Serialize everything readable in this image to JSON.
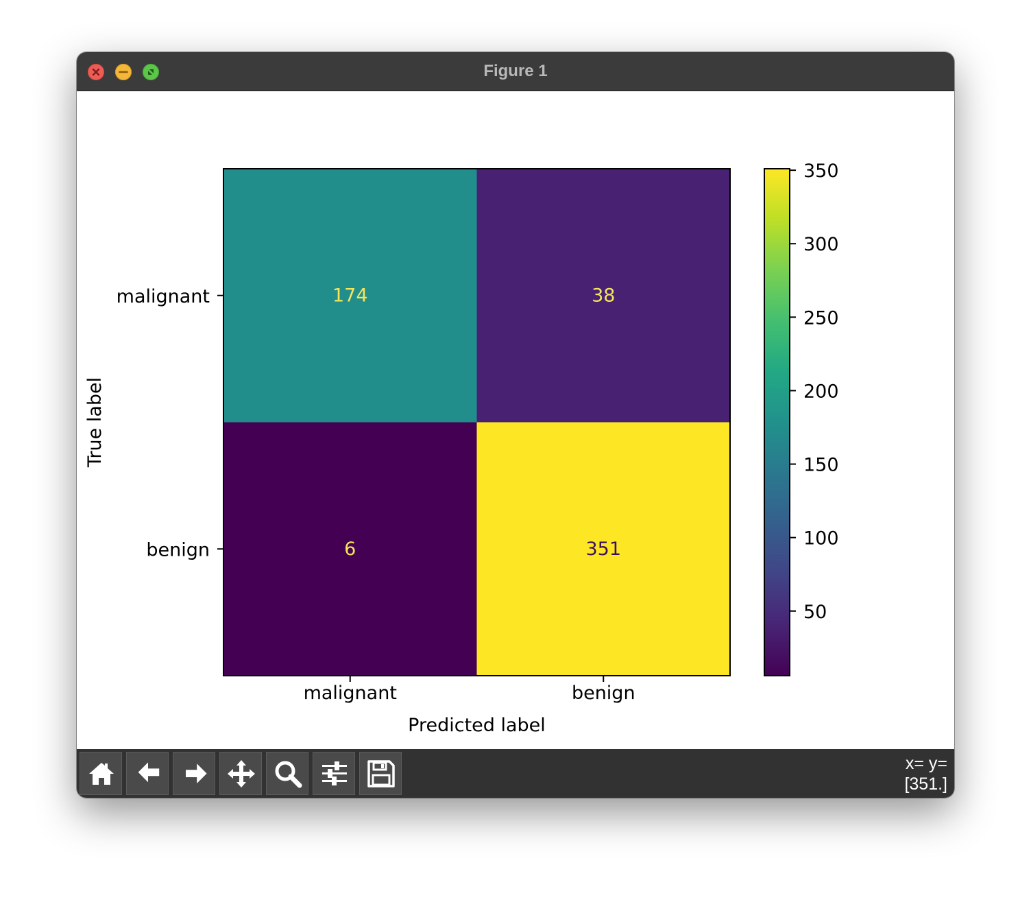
{
  "window": {
    "title": "Figure 1"
  },
  "toolbar": {
    "buttons": [
      {
        "icon": "home-icon"
      },
      {
        "icon": "back-arrow-icon"
      },
      {
        "icon": "forward-arrow-icon"
      },
      {
        "icon": "pan-icon"
      },
      {
        "icon": "zoom-icon"
      },
      {
        "icon": "subplots-config-icon"
      },
      {
        "icon": "save-icon"
      }
    ],
    "coords_line1": "x= y=",
    "coords_line2": "[351.]"
  },
  "chart_data": {
    "type": "heatmap",
    "title": "",
    "xlabel": "Predicted label",
    "ylabel": "True label",
    "x_categories": [
      "malignant",
      "benign"
    ],
    "y_categories": [
      "malignant",
      "benign"
    ],
    "values": [
      [
        174,
        38
      ],
      [
        6,
        351
      ]
    ],
    "colormap": "viridis",
    "colorbar": {
      "min": 6,
      "max": 351,
      "ticks": [
        50,
        100,
        150,
        200,
        250,
        300,
        350
      ]
    },
    "text_colors": {
      "on_dark": "#f4e55a",
      "on_light": "#3a0f5a"
    }
  }
}
